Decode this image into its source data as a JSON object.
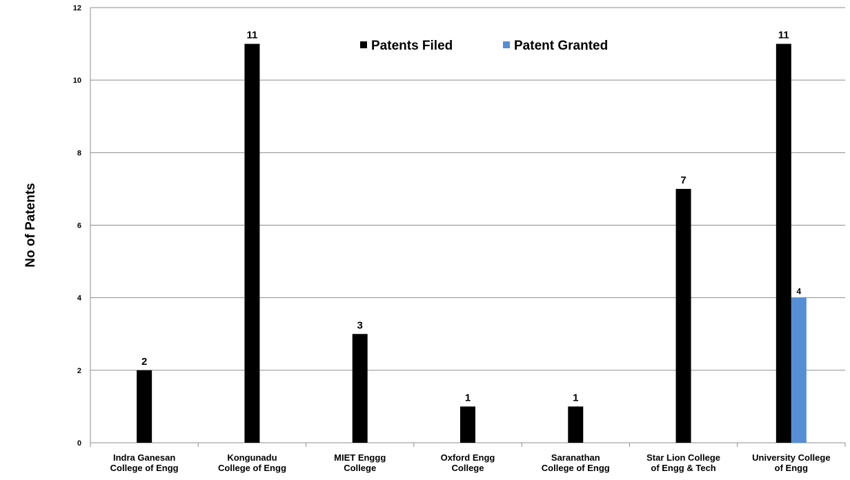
{
  "chart_data": {
    "type": "bar",
    "categories": [
      [
        "Indra Ganesan",
        "College of Engg"
      ],
      [
        "Kongunadu",
        "College of Engg"
      ],
      [
        "MIET Enggg",
        "College"
      ],
      [
        "Oxford Engg",
        "College"
      ],
      [
        "Saranathan",
        "College of Engg"
      ],
      [
        "Star Lion College",
        "of Engg & Tech"
      ],
      [
        "University College",
        "of Engg"
      ]
    ],
    "series": [
      {
        "name": "Patents Filed",
        "color": "#000000",
        "values": [
          2,
          11,
          3,
          1,
          1,
          7,
          11
        ],
        "data_labels": [
          "2",
          "11",
          "3",
          "1",
          "1",
          "7",
          "11"
        ]
      },
      {
        "name": "Patent Granted",
        "color": "#558ed5",
        "values": [
          null,
          null,
          null,
          null,
          null,
          null,
          4
        ],
        "data_labels": [
          "",
          "",
          "",
          "",
          "",
          "",
          "4"
        ]
      }
    ],
    "ylabel": "No of Patents",
    "xlabel": "",
    "ylim": [
      0,
      12
    ],
    "yticks": [
      "0",
      "2",
      "4",
      "6",
      "8",
      "10",
      "12"
    ],
    "grid": true,
    "legend_position": "top-center"
  }
}
